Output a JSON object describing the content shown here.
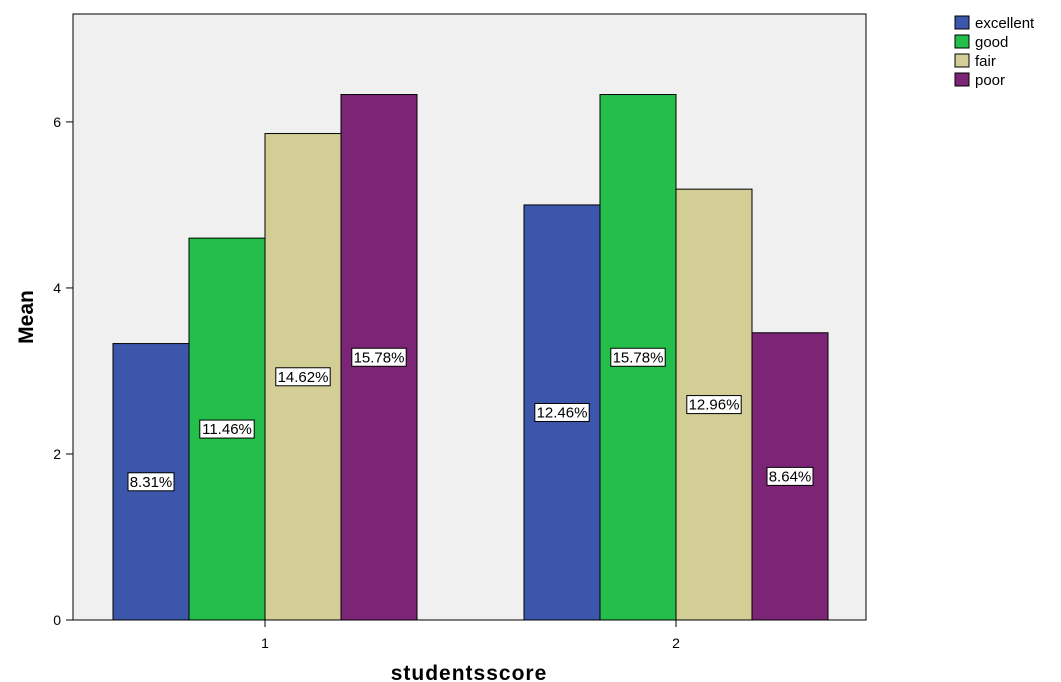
{
  "chart_data": {
    "type": "bar",
    "categories": [
      "1",
      "2"
    ],
    "series": [
      {
        "name": "excellent",
        "color": "#3b56aa",
        "values": [
          3.33,
          5.0
        ],
        "labels": [
          "8.31%",
          "12.46%"
        ]
      },
      {
        "name": "good",
        "color": "#24bf4a",
        "values": [
          4.6,
          6.33
        ],
        "labels": [
          "11.46%",
          "15.78%"
        ]
      },
      {
        "name": "fair",
        "color": "#d3cd96",
        "values": [
          5.86,
          5.19
        ],
        "labels": [
          "14.62%",
          "12.96%"
        ]
      },
      {
        "name": "poor",
        "color": "#7c2475",
        "values": [
          6.33,
          3.46
        ],
        "labels": [
          "15.78%",
          "8.64%"
        ]
      }
    ],
    "xlabel": "studentsscore",
    "ylabel": "Mean",
    "ylim": [
      0,
      7.3
    ],
    "yticks": [
      0,
      2,
      4,
      6
    ],
    "plot_background": "#f0f0f0",
    "legend_position": "top-right"
  }
}
